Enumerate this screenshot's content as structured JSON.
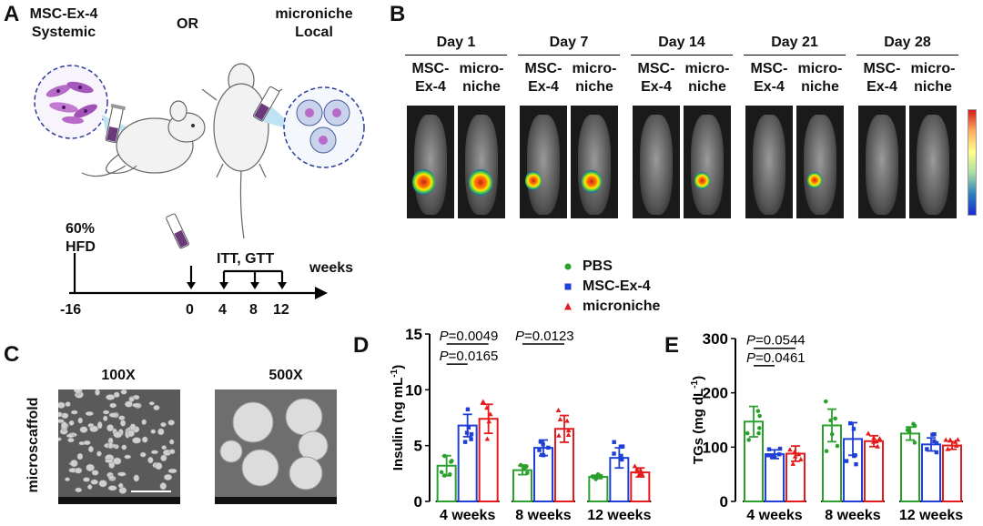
{
  "panel_a": {
    "label": "A",
    "left_title": [
      "MSC-Ex-4",
      "Systemic"
    ],
    "or_text": "OR",
    "right_title": [
      "microniche",
      "Local"
    ],
    "diet_text": [
      "60%",
      "HFD"
    ],
    "test_text": "ITT, GTT",
    "axis_unit": "weeks",
    "ticks": [
      "-16",
      "0",
      "4",
      "8",
      "12"
    ]
  },
  "panel_b": {
    "label": "B",
    "days": [
      "Day 1",
      "Day 7",
      "Day 14",
      "Day 21",
      "Day 28"
    ],
    "group_labels": [
      [
        "MSC-",
        "Ex-4"
      ],
      [
        "micro-",
        "niche"
      ]
    ],
    "signal_strength": [
      [
        0.95,
        1.0
      ],
      [
        0.55,
        0.8
      ],
      [
        0.0,
        0.45
      ],
      [
        0.0,
        0.4
      ],
      [
        0.0,
        0.0
      ]
    ]
  },
  "panel_c": {
    "label": "C",
    "side_label": "microscaffold",
    "mags": [
      "100X",
      "500X"
    ]
  },
  "legend": {
    "items": [
      {
        "label": "PBS",
        "color": "#2ca02c",
        "marker": "circle"
      },
      {
        "label": "MSC-Ex-4",
        "color": "#1f3fd6",
        "marker": "square"
      },
      {
        "label": "microniche",
        "color": "#e41a1c",
        "marker": "triangle"
      }
    ]
  },
  "panel_d_label": "D",
  "panel_e_label": "E",
  "chart_data": [
    {
      "type": "bar",
      "panel": "D",
      "ylabel": "Insulin (ng mL",
      "ylabel_sup": "-1",
      "ylabel_end": ")",
      "ylim": [
        0,
        15
      ],
      "yticks": [
        0,
        5,
        10,
        15
      ],
      "categories": [
        "4 weeks",
        "8 weeks",
        "12 weeks"
      ],
      "series": [
        {
          "name": "PBS",
          "color": "#2ca02c",
          "values": [
            3.2,
            2.8,
            2.2
          ],
          "errors": [
            0.9,
            0.4,
            0.15
          ]
        },
        {
          "name": "MSC-Ex-4",
          "color": "#1f3fd6",
          "values": [
            6.8,
            4.8,
            3.9
          ],
          "errors": [
            1.0,
            0.7,
            0.9
          ]
        },
        {
          "name": "microniche",
          "color": "#e41a1c",
          "values": [
            7.4,
            6.5,
            2.6
          ],
          "errors": [
            1.3,
            1.2,
            0.4
          ]
        }
      ],
      "annotations": [
        {
          "text": "P=0.0165",
          "category": 0,
          "from": 0,
          "to": 1,
          "y": 12.3
        },
        {
          "text": "P=0.0049",
          "category": 0,
          "from": 0,
          "to": 2,
          "y": 14.1
        },
        {
          "text": "P=0.0123",
          "category": 1,
          "from": 0,
          "to": 2,
          "y": 14.1
        }
      ]
    },
    {
      "type": "bar",
      "panel": "E",
      "ylabel": "TGs (mg dL",
      "ylabel_sup": "-1",
      "ylabel_end": ")",
      "ylim": [
        0,
        300
      ],
      "yticks": [
        0,
        100,
        200,
        300
      ],
      "categories": [
        "4 weeks",
        "8 weeks",
        "12 weeks"
      ],
      "series": [
        {
          "name": "PBS",
          "color": "#2ca02c",
          "values": [
            147,
            140,
            125
          ],
          "errors": [
            28,
            30,
            12
          ]
        },
        {
          "name": "MSC-Ex-4",
          "color": "#1f3fd6",
          "values": [
            87,
            115,
            105
          ],
          "errors": [
            8,
            30,
            12
          ]
        },
        {
          "name": "microniche",
          "color": "#e41a1c",
          "values": [
            88,
            111,
            103
          ],
          "errors": [
            14,
            10,
            7
          ]
        }
      ],
      "annotations": [
        {
          "text": "P=0.0461",
          "category": 0,
          "from": 0,
          "to": 1,
          "y": 250
        },
        {
          "text": "P=0.0544",
          "category": 0,
          "from": 0,
          "to": 2,
          "y": 282
        }
      ]
    }
  ]
}
